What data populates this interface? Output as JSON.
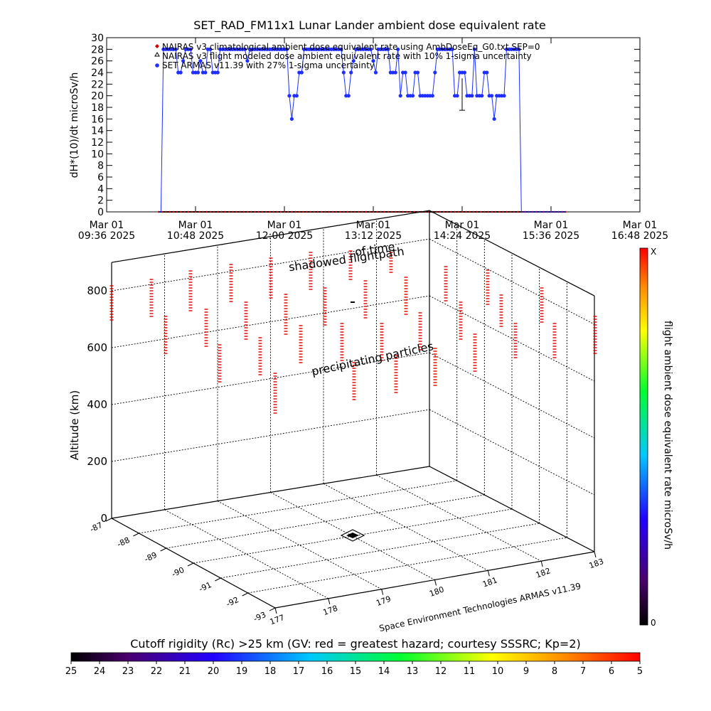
{
  "title": "SET_RAD_FM11x1  Lunar Lander ambient dose equivalent rate",
  "colors": {
    "series_armas": "#1f2fff",
    "series_climatology": "#cc0000",
    "series_flight_model": "#000000",
    "rigidity_marker": "#dd0000",
    "axis": "#000000"
  },
  "chart_data": [
    {
      "type": "line",
      "title": "SET_RAD_FM11x1  Lunar Lander ambient dose equivalent rate",
      "ylabel": "dH*(10)/dt microSv/h",
      "xlabel": "",
      "ylim": [
        0,
        30
      ],
      "y_ticks": [
        "0",
        "2",
        "4",
        "6",
        "8",
        "10",
        "12",
        "14",
        "16",
        "18",
        "20",
        "22",
        "24",
        "26",
        "28",
        "30"
      ],
      "x_ticks": [
        {
          "line1": "Mar 01",
          "line2": "09:36 2025"
        },
        {
          "line1": "Mar 01",
          "line2": "10:48 2025"
        },
        {
          "line1": "Mar 01",
          "line2": "12:00 2025"
        },
        {
          "line1": "Mar 01",
          "line2": "13:12 2025"
        },
        {
          "line1": "Mar 01",
          "line2": "14:24 2025"
        },
        {
          "line1": "Mar 01",
          "line2": "15:36 2025"
        },
        {
          "line1": "Mar 01",
          "line2": "16:48 2025"
        }
      ],
      "xlim_minutes_from_0936": [
        0,
        432
      ],
      "legend_position": "top-left",
      "legend": [
        {
          "marker": "diamond",
          "text": "NAIRAS v3 climatological ambient dose equivalent rate using AmbDoseEq_G0.txt SEP=0"
        },
        {
          "marker": "triangle",
          "text": "NAIRAS v3 flight modeled dose ambient equivalent rate with 10% 1-sigma uncertainty"
        },
        {
          "marker": "circle",
          "text": "SET ARMAS v11.39 with 27% 1-sigma uncertainty"
        }
      ],
      "series": [
        {
          "name": "SET ARMAS v11.39 with 27% 1-sigma uncertainty",
          "x_minutes_from_0936": [
            42,
            44,
            46,
            48,
            50,
            52,
            54,
            56,
            58,
            60,
            62,
            64,
            66,
            68,
            70,
            72,
            74,
            76,
            78,
            80,
            82,
            84,
            86,
            88,
            90,
            92,
            94,
            96,
            98,
            100,
            102,
            104,
            106,
            108,
            110,
            112,
            114,
            116,
            118,
            120,
            122,
            124,
            126,
            128,
            130,
            132,
            134,
            136,
            138,
            140,
            142,
            144,
            146,
            148,
            150,
            152,
            154,
            156,
            158,
            160,
            162,
            164,
            166,
            168,
            170,
            172,
            174,
            176,
            178,
            180,
            182,
            184,
            186,
            188,
            190,
            192,
            194,
            196,
            198,
            200,
            202,
            204,
            206,
            208,
            210,
            212,
            214,
            216,
            218,
            220,
            222,
            224,
            226,
            228,
            230,
            232,
            234,
            236,
            238,
            240,
            242,
            244,
            246,
            248,
            250,
            252,
            254,
            256,
            258,
            260,
            262,
            264,
            266,
            268,
            270,
            272,
            274,
            276,
            278,
            280,
            282,
            284,
            286,
            288,
            290,
            292,
            294,
            296,
            298,
            300,
            302,
            304,
            306,
            308,
            310,
            312,
            314,
            316,
            318,
            320,
            322,
            324,
            326,
            328,
            330,
            332,
            334,
            336,
            338,
            340,
            342,
            344,
            346,
            348,
            350,
            352,
            354,
            356,
            358,
            360,
            362,
            364,
            366,
            368,
            370,
            372
          ],
          "values": [
            0,
            0,
            28,
            28,
            28,
            28,
            28,
            28,
            24,
            24,
            26,
            28,
            28,
            28,
            24,
            24,
            24,
            26,
            24,
            24,
            28,
            28,
            24,
            24,
            24,
            28,
            28,
            28,
            28,
            28,
            28,
            28,
            28,
            28,
            28,
            28,
            26,
            28,
            28,
            28,
            28,
            28,
            28,
            28,
            28,
            28,
            28,
            28,
            28,
            28,
            28,
            28,
            28,
            20,
            16,
            20,
            20,
            24,
            24,
            28,
            28,
            28,
            28,
            28,
            28,
            28,
            28,
            28,
            28,
            28,
            28,
            28,
            28,
            28,
            28,
            24,
            20,
            20,
            24,
            26,
            28,
            28,
            28,
            28,
            28,
            28,
            28,
            26,
            24,
            28,
            28,
            28,
            28,
            28,
            24,
            24,
            24,
            28,
            20,
            24,
            24,
            20,
            20,
            20,
            24,
            24,
            20,
            20,
            20,
            20,
            20,
            20,
            24,
            28,
            28,
            28,
            28,
            28,
            28,
            28,
            20,
            20,
            24,
            24,
            24,
            20,
            20,
            20,
            28,
            20,
            20,
            20,
            24,
            24,
            20,
            20,
            16,
            20,
            20,
            20,
            20,
            28,
            28,
            28,
            28,
            28,
            28,
            0,
            0,
            0,
            0,
            0,
            0,
            0,
            0,
            0,
            0,
            0,
            0,
            0,
            0,
            0,
            0,
            0,
            0,
            0,
            0,
            0
          ]
        },
        {
          "name": "NAIRAS v3 flight modeled dose ambient equivalent rate with 10% 1-sigma uncertainty",
          "x_minutes_from_0936": [
            42,
            372
          ],
          "values": [
            0,
            0
          ]
        }
      ]
    },
    {
      "type": "scatter",
      "subtitle": "shadowed flightpath",
      "subtitle2": "of time",
      "annotation": "precipitating particles",
      "zlabel": "Altitude (km)",
      "z_ticks": [
        "0",
        "200",
        "400",
        "600",
        "800"
      ],
      "zlim": [
        0,
        900
      ],
      "x_ticks": [
        "177",
        "178",
        "179",
        "180",
        "181",
        "182",
        "183"
      ],
      "y_ticks": [
        "-93",
        "-92",
        "-91",
        "-90",
        "-89",
        "-88",
        "-87"
      ],
      "grid": true,
      "flight_marker": {
        "lon": 178.8,
        "lat": -89.6,
        "alt": 0
      }
    }
  ],
  "colorbar_right": {
    "label": "flight ambient dose equivalent rate microSv/h",
    "top_label": "X",
    "bottom_label": "0"
  },
  "colorbar_bottom": {
    "label": "Cutoff rigidity (Rc) >25 km (GV: red = greatest hazard; courtesy SSSRC; Kp=2)",
    "ticks": [
      "25",
      "24",
      "23",
      "22",
      "21",
      "20",
      "19",
      "18",
      "17",
      "16",
      "15",
      "14",
      "13",
      "12",
      "11",
      "10",
      "9",
      "8",
      "7",
      "6",
      "5"
    ]
  },
  "credit": "Space Environment Technologies ARMAS v11.39"
}
